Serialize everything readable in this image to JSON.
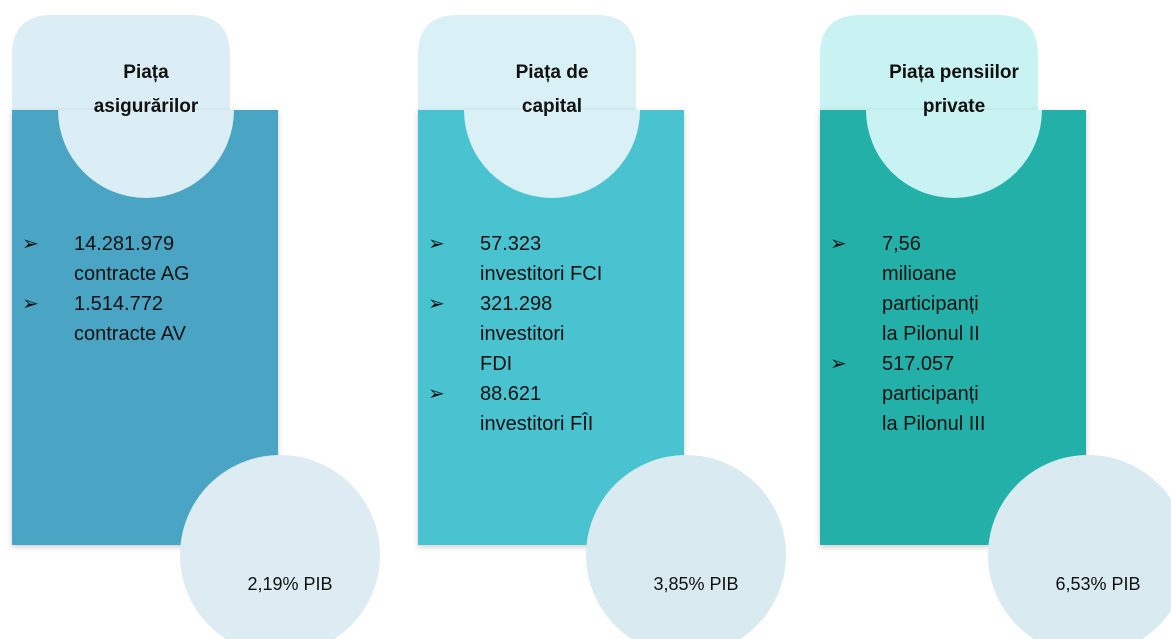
{
  "columns": [
    {
      "title": [
        "Piața",
        "asigurărilor"
      ],
      "bullets": [
        [
          "14.281.979",
          "contracte AG"
        ],
        [
          "1.514.772",
          "contracte AV"
        ]
      ],
      "footer": "2,19% PIB"
    },
    {
      "title": [
        "Piața de",
        "capital"
      ],
      "bullets": [
        [
          "57.323",
          "investitori FCI"
        ],
        [
          "321.298",
          "investitori",
          "FDI"
        ],
        [
          "88.621",
          "investitori FÎI"
        ]
      ],
      "footer": "3,85% PIB"
    },
    {
      "title": [
        "Piața pensiilor",
        "private"
      ],
      "bullets": [
        [
          "7,56",
          "milioane",
          "participanți",
          "la Pilonul II"
        ],
        [
          "517.057",
          "participanți",
          "la Pilonul III"
        ]
      ],
      "footer": "6,53% PIB"
    }
  ]
}
